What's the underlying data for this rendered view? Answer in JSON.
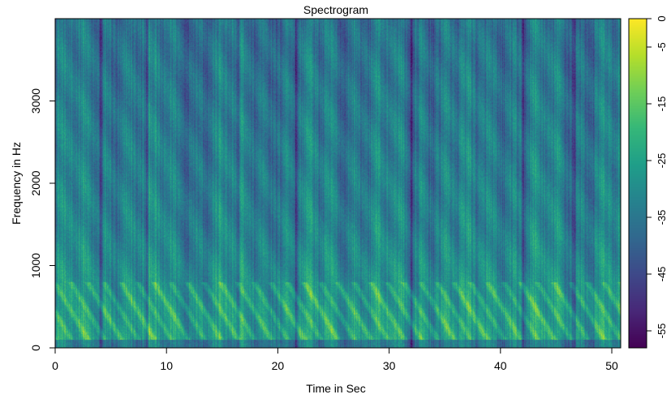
{
  "chart_data": {
    "type": "heatmap",
    "title": "Spectrogram",
    "xlabel": "Time in Sec",
    "ylabel": "Frequency in Hz",
    "xlim": [
      0,
      50.8
    ],
    "ylim": [
      0,
      4000
    ],
    "x_ticks": [
      0,
      10,
      20,
      30,
      40,
      50
    ],
    "y_ticks": [
      0,
      1000,
      2000,
      3000
    ],
    "colorbar": {
      "range": [
        -58,
        0
      ],
      "ticks": [
        0,
        -5,
        -15,
        -25,
        -35,
        -45,
        -55
      ],
      "colormap": [
        "#440154",
        "#482878",
        "#3e4989",
        "#31688e",
        "#26828e",
        "#1f9e89",
        "#35b779",
        "#6ece58",
        "#b5de2b",
        "#fde725"
      ]
    },
    "description_values": {
      "dark_time_bands_sec": [
        4.1,
        8.2,
        16.4,
        21.6,
        32.0,
        42.0,
        46.6
      ],
      "energy_peak_band_hz": [
        100,
        800
      ],
      "typical_level_db": -30
    }
  }
}
